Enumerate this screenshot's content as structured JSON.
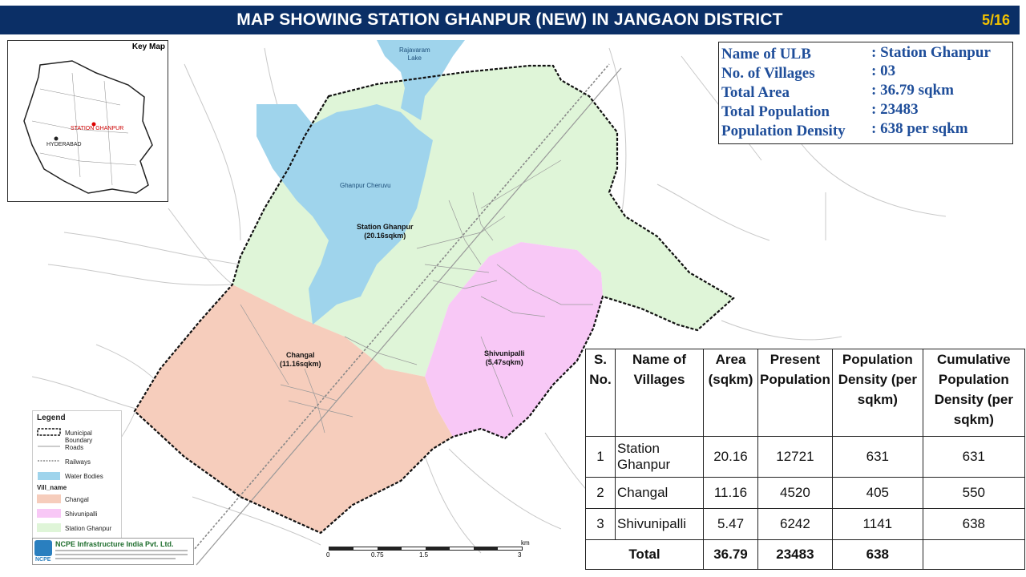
{
  "title": "MAP SHOWING STATION GHANPUR (NEW) IN JANGAON DISTRICT",
  "page_indicator": "5/16",
  "key_map": {
    "title": "Key Map",
    "station_label": "STATION GHANPUR",
    "city_label": "HYDERABAD"
  },
  "map_labels": {
    "lake1": "Rajavaram",
    "lake2": "Lake",
    "cheruvu": "Ghanpur Cheruvu",
    "station": "Station Ghanpur",
    "station_area": "(20.16sqkm)",
    "changal": "Changal",
    "changal_area": "(11.16sqkm)",
    "shivuni": "Shivunipalli",
    "shivuni_area": "(5.47sqkm)"
  },
  "info": {
    "rows": [
      {
        "label": "Name of ULB",
        "value": ": Station Ghanpur"
      },
      {
        "label": "No. of Villages",
        "value": ": 03"
      },
      {
        "label": "Total Area",
        "value": ": 36.79 sqkm"
      },
      {
        "label": "Total Population",
        "value": ": 23483"
      },
      {
        "label": "Population Density",
        "value": ": 638 per sqkm"
      }
    ]
  },
  "legend": {
    "title": "Legend",
    "boundary": "Municipal Boundary",
    "roads": "Roads",
    "railways": "Railways",
    "water": "Water Bodies",
    "vill_title": "Vill_name",
    "changal": "Changal",
    "shivuni": "Shivunipalli",
    "station": "Station Ghanpur"
  },
  "colors": {
    "station": "#dff5d8",
    "changal": "#f6cdbc",
    "shivuni": "#f8c8f6",
    "water": "#9fd4ec",
    "title_bar": "#0b2f66"
  },
  "logo": {
    "name": "NCPE Infrastructure India Pvt. Ltd.",
    "short": "NCPE"
  },
  "scale": {
    "ticks": [
      "0",
      "0.75",
      "1.5",
      "3"
    ],
    "unit": "km"
  },
  "table": {
    "headers": [
      "S. No.",
      "Name of Villages",
      "Area (sqkm)",
      "Present Population",
      "Population Density (per sqkm)",
      "Cumulative Population Density (per sqkm)"
    ],
    "rows": [
      {
        "sno": "1",
        "name": "Station Ghanpur",
        "area": "20.16",
        "pop": "12721",
        "density": "631",
        "cum": "631"
      },
      {
        "sno": "2",
        "name": "Changal",
        "area": "11.16",
        "pop": "4520",
        "density": "405",
        "cum": "550"
      },
      {
        "sno": "3",
        "name": "Shivunipalli",
        "area": "5.47",
        "pop": "6242",
        "density": "1141",
        "cum": "638"
      }
    ],
    "total": {
      "label": "Total",
      "area": "36.79",
      "pop": "23483",
      "density": "638",
      "cum": ""
    }
  }
}
